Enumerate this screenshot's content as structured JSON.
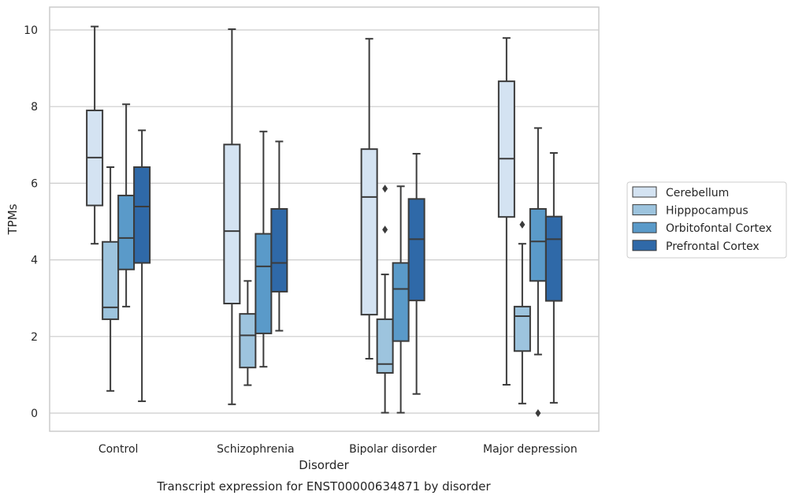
{
  "chart_data": {
    "type": "box",
    "title": "",
    "xlabel": "Disorder",
    "ylabel": "TPMs",
    "caption": "Transcript expression for ENST00000634871 by disorder",
    "ylim": [
      -0.5,
      10.6
    ],
    "yticks": [
      0,
      2,
      4,
      6,
      8,
      10
    ],
    "grid": "y",
    "legend_position": "right",
    "categories": [
      "Control",
      "Schizophrenia",
      "Bipolar disorder",
      "Major depression"
    ],
    "series": [
      {
        "name": "Cerebellum",
        "color": "#d4e3f2",
        "boxes": [
          {
            "whislo": 4.42,
            "q1": 5.42,
            "med": 6.67,
            "q3": 7.9,
            "whishi": 10.09,
            "fliers": []
          },
          {
            "whislo": 0.23,
            "q1": 2.86,
            "med": 4.75,
            "q3": 7.01,
            "whishi": 10.02,
            "fliers": []
          },
          {
            "whislo": 1.42,
            "q1": 2.57,
            "med": 5.64,
            "q3": 6.89,
            "whishi": 9.77,
            "fliers": []
          },
          {
            "whislo": 0.74,
            "q1": 5.12,
            "med": 6.64,
            "q3": 8.66,
            "whishi": 9.79,
            "fliers": []
          }
        ]
      },
      {
        "name": "Hipppocampus",
        "color": "#9dc4de",
        "boxes": [
          {
            "whislo": 0.58,
            "q1": 2.45,
            "med": 2.76,
            "q3": 4.47,
            "whishi": 6.42,
            "fliers": []
          },
          {
            "whislo": 0.73,
            "q1": 1.19,
            "med": 2.03,
            "q3": 2.59,
            "whishi": 3.45,
            "fliers": []
          },
          {
            "whislo": 0.01,
            "q1": 1.05,
            "med": 1.28,
            "q3": 2.45,
            "whishi": 3.62,
            "fliers": [
              5.86,
              4.79
            ]
          },
          {
            "whislo": 0.25,
            "q1": 1.62,
            "med": 2.53,
            "q3": 2.78,
            "whishi": 4.42,
            "fliers": [
              4.92
            ]
          }
        ]
      },
      {
        "name": "Orbitofontal Cortex",
        "color": "#5a9ac9",
        "boxes": [
          {
            "whislo": 2.78,
            "q1": 3.75,
            "med": 4.57,
            "q3": 5.68,
            "whishi": 8.06,
            "fliers": []
          },
          {
            "whislo": 1.21,
            "q1": 2.08,
            "med": 3.83,
            "q3": 4.68,
            "whishi": 7.35,
            "fliers": []
          },
          {
            "whislo": 0.01,
            "q1": 1.88,
            "med": 3.24,
            "q3": 3.92,
            "whishi": 5.92,
            "fliers": []
          },
          {
            "whislo": 1.53,
            "q1": 3.45,
            "med": 4.48,
            "q3": 5.33,
            "whishi": 7.44,
            "fliers": [
              0.0
            ]
          }
        ]
      },
      {
        "name": "Prefrontal Cortex",
        "color": "#2f69a8",
        "boxes": [
          {
            "whislo": 0.31,
            "q1": 3.92,
            "med": 5.39,
            "q3": 6.42,
            "whishi": 7.38,
            "fliers": []
          },
          {
            "whislo": 2.15,
            "q1": 3.17,
            "med": 3.92,
            "q3": 5.33,
            "whishi": 7.09,
            "fliers": []
          },
          {
            "whislo": 0.5,
            "q1": 2.94,
            "med": 4.54,
            "q3": 5.59,
            "whishi": 6.77,
            "fliers": []
          },
          {
            "whislo": 0.27,
            "q1": 2.93,
            "med": 4.54,
            "q3": 5.13,
            "whishi": 6.79,
            "fliers": []
          }
        ]
      }
    ]
  }
}
